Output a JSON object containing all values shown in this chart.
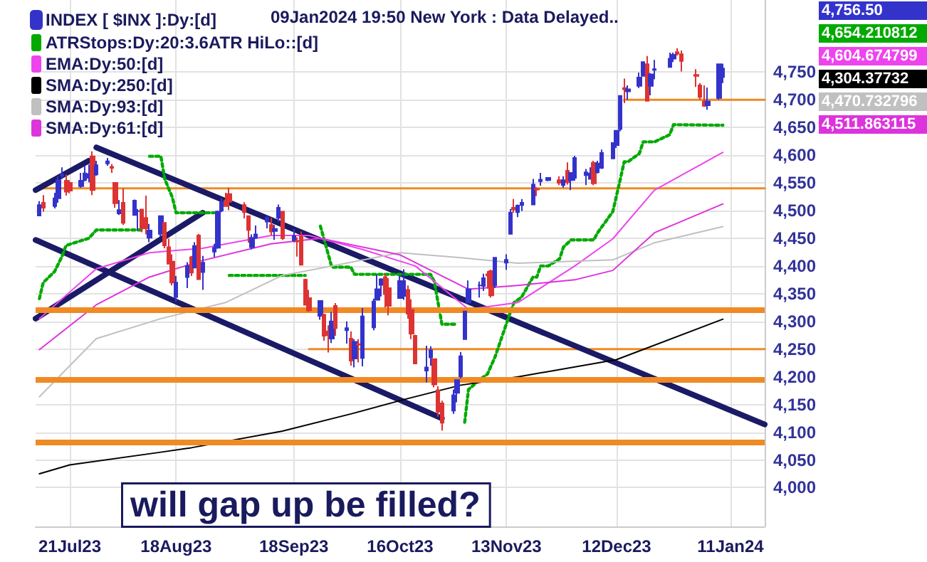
{
  "chart_data": {
    "type": "candlestick",
    "title": "09Jan2024 19:50 New York : Data Delayed..",
    "legend": "top left",
    "grid": true,
    "annotations": [
      "will gap up be filled?",
      "4,756.50",
      "4,654.210812",
      "4,604.674799",
      "4,304.37732",
      "4,470.732796",
      "4,511.863115"
    ],
    "xlim": [
      "2023-07-12",
      "2024-01-20"
    ],
    "xticks": [
      {
        "value": "2023-07-21",
        "label": "21Jul23"
      },
      {
        "value": "2023-08-18",
        "label": "18Aug23"
      },
      {
        "value": "2023-09-18",
        "label": "18Sep23"
      },
      {
        "value": "2023-10-16",
        "label": "16Oct23"
      },
      {
        "value": "2023-11-13",
        "label": "13Nov23"
      },
      {
        "value": "2023-12-12",
        "label": "12Dec23"
      },
      {
        "value": "2024-01-11",
        "label": "11Jan24"
      }
    ],
    "ylim": [
      3930,
      4880
    ],
    "yticks": [
      {
        "value": 4000,
        "label": "4,000"
      },
      {
        "value": 4050,
        "label": "4,050"
      },
      {
        "value": 4100,
        "label": "4,100"
      },
      {
        "value": 4150,
        "label": "4,150"
      },
      {
        "value": 4200,
        "label": "4,200"
      },
      {
        "value": 4250,
        "label": "4,250"
      },
      {
        "value": 4300,
        "label": "4,300"
      },
      {
        "value": 4350,
        "label": "4,350"
      },
      {
        "value": 4400,
        "label": "4,400"
      },
      {
        "value": 4450,
        "label": "4,450"
      },
      {
        "value": 4500,
        "label": "4,500"
      },
      {
        "value": 4550,
        "label": "4,550"
      },
      {
        "value": 4600,
        "label": "4,600"
      },
      {
        "value": 4650,
        "label": "4,650"
      },
      {
        "value": 4700,
        "label": "4,700"
      },
      {
        "value": 4750,
        "label": "4,750"
      }
    ],
    "ref_lines": [
      {
        "axis": "y",
        "value": 4320,
        "color": "#f08a24"
      },
      {
        "axis": "y",
        "value": 4195,
        "color": "#f08a24"
      },
      {
        "axis": "y",
        "value": 4082,
        "color": "#f08a24"
      }
    ],
    "series": [
      {
        "name": "INDEX [ $INX ]:Dy:[d]",
        "colors": [
          "#3333cc",
          "#dd3333",
          "#3333cc",
          "#3333cc",
          "#3333cc",
          "#dd3333",
          "#dd3333",
          "#3333cc",
          "#3333cc",
          "#3333cc",
          "#dd3333",
          "#3333cc",
          "#3333cc",
          "#dd3333",
          "#dd3333",
          "#3333cc",
          "#dd3333",
          "#3333cc",
          "#3333cc",
          "#dd3333",
          "#dd3333",
          "#3333cc",
          "#3333cc",
          "#dd3333",
          "#dd3333",
          "#dd3333",
          "#3333cc",
          "#3333cc",
          "#dd3333",
          "#3333cc",
          "#dd3333",
          "#3333cc",
          "#3333cc",
          "#3333cc",
          "#3333cc",
          "#dd3333",
          "#dd3333",
          "#dd3333",
          "#dd3333",
          "#3333cc",
          "#3333cc",
          "#3333cc",
          "#dd3333",
          "#3333cc",
          "#3333cc",
          "#dd3333",
          "#3333cc",
          "#dd3333",
          "#dd3333",
          "#dd3333",
          "#dd3333",
          "#3333cc",
          "#dd3333",
          "#dd3333",
          "#3333cc",
          "#dd3333",
          "#3333cc",
          "#dd3333",
          "#3333cc",
          "#dd3333",
          "#3333cc",
          "#3333cc",
          "#3333cc",
          "#3333cc",
          "#dd3333",
          "#dd3333",
          "#3333cc",
          "#3333cc",
          "#dd3333",
          "#dd3333",
          "#dd3333",
          "#3333cc",
          "#3333cc",
          "#dd3333",
          "#dd3333",
          "#dd3333",
          "#3333cc",
          "#3333cc",
          "#3333cc",
          "#3333cc",
          "#3333cc",
          "#3333cc",
          "#3333cc",
          "#dd3333",
          "#dd3333",
          "#3333cc",
          "#3333cc",
          "#3333cc",
          "#dd3333",
          "#3333cc",
          "#3333cc",
          "#3333cc",
          "#dd3333",
          "#3333cc",
          "#3333cc",
          "#dd3333",
          "#3333cc",
          "#dd3333",
          "#3333cc",
          "#3333cc",
          "#3333cc",
          "#3333cc",
          "#dd3333",
          "#3333cc",
          "#3333cc",
          "#3333cc",
          "#3333cc",
          "#3333cc",
          "#dd3333",
          "#3333cc",
          "#3333cc",
          "#3333cc",
          "#dd3333",
          "#3333cc",
          "#3333cc",
          "#3333cc",
          "#3333cc",
          "#dd3333",
          "#dd3333",
          "#dd3333",
          "#dd3333",
          "#dd3333",
          "#3333cc",
          "#3333cc",
          "#3333cc"
        ],
        "x": [
          "2023-07-13",
          "2023-07-14",
          "2023-07-17",
          "2023-07-18",
          "2023-07-19",
          "2023-07-20",
          "2023-07-21",
          "2023-07-24",
          "2023-07-25",
          "2023-07-26",
          "2023-07-27",
          "2023-07-28",
          "2023-07-31",
          "2023-08-01",
          "2023-08-02",
          "2023-08-03",
          "2023-08-04",
          "2023-08-07",
          "2023-08-08",
          "2023-08-09",
          "2023-08-10",
          "2023-08-11",
          "2023-08-14",
          "2023-08-15",
          "2023-08-16",
          "2023-08-17",
          "2023-08-18",
          "2023-08-21",
          "2023-08-22",
          "2023-08-23",
          "2023-08-24",
          "2023-08-25",
          "2023-08-28",
          "2023-08-29",
          "2023-08-30",
          "2023-08-31",
          "2023-09-01",
          "2023-09-05",
          "2023-09-06",
          "2023-09-07",
          "2023-09-08",
          "2023-09-11",
          "2023-09-12",
          "2023-09-13",
          "2023-09-14",
          "2023-09-15",
          "2023-09-18",
          "2023-09-19",
          "2023-09-20",
          "2023-09-21",
          "2023-09-22",
          "2023-09-25",
          "2023-09-26",
          "2023-09-27",
          "2023-09-28",
          "2023-09-29",
          "2023-10-02",
          "2023-10-03",
          "2023-10-04",
          "2023-10-05",
          "2023-10-06",
          "2023-10-09",
          "2023-10-10",
          "2023-10-11",
          "2023-10-12",
          "2023-10-13",
          "2023-10-16",
          "2023-10-17",
          "2023-10-18",
          "2023-10-19",
          "2023-10-20",
          "2023-10-23",
          "2023-10-24",
          "2023-10-25",
          "2023-10-26",
          "2023-10-27",
          "2023-10-30",
          "2023-10-31",
          "2023-11-01",
          "2023-11-02",
          "2023-11-03",
          "2023-11-06",
          "2023-11-07",
          "2023-11-08",
          "2023-11-09",
          "2023-11-10",
          "2023-11-13",
          "2023-11-14",
          "2023-11-15",
          "2023-11-16",
          "2023-11-17",
          "2023-11-20",
          "2023-11-21",
          "2023-11-22",
          "2023-11-24",
          "2023-11-27",
          "2023-11-28",
          "2023-11-29",
          "2023-11-30",
          "2023-12-01",
          "2023-12-04",
          "2023-12-05",
          "2023-12-06",
          "2023-12-07",
          "2023-12-08",
          "2023-12-11",
          "2023-12-12",
          "2023-12-13",
          "2023-12-14",
          "2023-12-15",
          "2023-12-18",
          "2023-12-19",
          "2023-12-20",
          "2023-12-21",
          "2023-12-22",
          "2023-12-26",
          "2023-12-27",
          "2023-12-28",
          "2023-12-29",
          "2024-01-02",
          "2024-01-03",
          "2024-01-04",
          "2024-01-05",
          "2024-01-08",
          "2024-01-09"
        ],
        "ohlc": [
          [
            4491,
            4517,
            4491,
            4510
          ],
          [
            4514,
            4528,
            4498,
            4505
          ],
          [
            4508,
            4532,
            4504,
            4522
          ],
          [
            4522,
            4562,
            4514,
            4555
          ],
          [
            4563,
            4578,
            4557,
            4565
          ],
          [
            4554,
            4565,
            4527,
            4534
          ],
          [
            4550,
            4555,
            4531,
            4536
          ],
          [
            4544,
            4568,
            4541,
            4554
          ],
          [
            4555,
            4580,
            4553,
            4567
          ],
          [
            4559,
            4583,
            4551,
            4566
          ],
          [
            4598,
            4607,
            4528,
            4537
          ],
          [
            4565,
            4590,
            4563,
            4582
          ],
          [
            4585,
            4595,
            4581,
            4589
          ],
          [
            4579,
            4584,
            4568,
            4577
          ],
          [
            4550,
            4551,
            4505,
            4513
          ],
          [
            4495,
            4519,
            4492,
            4501
          ],
          [
            4514,
            4540,
            4474,
            4478
          ],
          [
            4492,
            4520,
            4491,
            4518
          ],
          [
            4499,
            4503,
            4464,
            4499
          ],
          [
            4502,
            4503,
            4461,
            4468
          ],
          [
            4487,
            4527,
            4457,
            4468
          ],
          [
            4451,
            4476,
            4443,
            4464
          ],
          [
            4458,
            4490,
            4453,
            4490
          ],
          [
            4478,
            4478,
            4432,
            4437
          ],
          [
            4434,
            4449,
            4403,
            4404
          ],
          [
            4408,
            4421,
            4365,
            4370
          ],
          [
            4344,
            4382,
            4335,
            4370
          ],
          [
            4380,
            4407,
            4360,
            4400
          ],
          [
            4416,
            4418,
            4382,
            4388
          ],
          [
            4397,
            4443,
            4397,
            4436
          ],
          [
            4455,
            4458,
            4375,
            4376
          ],
          [
            4389,
            4418,
            4357,
            4406
          ],
          [
            4426,
            4440,
            4416,
            4433
          ],
          [
            4433,
            4500,
            4431,
            4498
          ],
          [
            4500,
            4522,
            4497,
            4515
          ],
          [
            4518,
            4532,
            4507,
            4508
          ],
          [
            4530,
            4541,
            4501,
            4516
          ],
          [
            4510,
            4515,
            4486,
            4497
          ],
          [
            4490,
            4491,
            4442,
            4465
          ],
          [
            4434,
            4457,
            4430,
            4451
          ],
          [
            4451,
            4473,
            4449,
            4457
          ],
          [
            4480,
            4490,
            4468,
            4487
          ],
          [
            4474,
            4487,
            4456,
            4462
          ],
          [
            4463,
            4474,
            4447,
            4467
          ],
          [
            4487,
            4511,
            4479,
            4505
          ],
          [
            4498,
            4498,
            4447,
            4450
          ],
          [
            4446,
            4467,
            4443,
            4454
          ],
          [
            4445,
            4452,
            4417,
            4444
          ],
          [
            4453,
            4462,
            4402,
            4402
          ],
          [
            4375,
            4377,
            4329,
            4330
          ],
          [
            4342,
            4357,
            4317,
            4320
          ],
          [
            4310,
            4338,
            4303,
            4337
          ],
          [
            4312,
            4314,
            4265,
            4274
          ],
          [
            4282,
            4293,
            4244,
            4275
          ],
          [
            4269,
            4317,
            4261,
            4300
          ],
          [
            4328,
            4333,
            4274,
            4288
          ],
          [
            4284,
            4300,
            4260,
            4288
          ],
          [
            4269,
            4282,
            4220,
            4229
          ],
          [
            4233,
            4268,
            4217,
            4263
          ],
          [
            4259,
            4268,
            4226,
            4258
          ],
          [
            4234,
            4324,
            4219,
            4309
          ],
          [
            4289,
            4341,
            4284,
            4336
          ],
          [
            4339,
            4385,
            4339,
            4358
          ],
          [
            4366,
            4378,
            4345,
            4376
          ],
          [
            4380,
            4386,
            4325,
            4349
          ],
          [
            4360,
            4378,
            4311,
            4328
          ],
          [
            4342,
            4383,
            4342,
            4373
          ],
          [
            4346,
            4394,
            4339,
            4373
          ],
          [
            4357,
            4365,
            4305,
            4314
          ],
          [
            4321,
            4340,
            4268,
            4278
          ],
          [
            4274,
            4276,
            4223,
            4224
          ],
          [
            4211,
            4256,
            4190,
            4217
          ],
          [
            4235,
            4255,
            4220,
            4248
          ],
          [
            4232,
            4232,
            4181,
            4186
          ],
          [
            4176,
            4183,
            4128,
            4137
          ],
          [
            4152,
            4157,
            4103,
            4117
          ],
          [
            4139,
            4177,
            4133,
            4167
          ],
          [
            4171,
            4195,
            4154,
            4194
          ],
          [
            4201,
            4245,
            4197,
            4237
          ],
          [
            4268,
            4319,
            4268,
            4318
          ],
          [
            4334,
            4374,
            4334,
            4358
          ],
          [
            4365,
            4372,
            4343,
            4365
          ],
          [
            4364,
            4386,
            4355,
            4378
          ],
          [
            4385,
            4391,
            4359,
            4383
          ],
          [
            4391,
            4393,
            4343,
            4347
          ],
          [
            4365,
            4415,
            4360,
            4415
          ],
          [
            4406,
            4421,
            4393,
            4411
          ],
          [
            4458,
            4503,
            4458,
            4496
          ],
          [
            4505,
            4521,
            4496,
            4502
          ],
          [
            4497,
            4511,
            4488,
            4509
          ],
          [
            4510,
            4521,
            4499,
            4514
          ],
          [
            4511,
            4557,
            4511,
            4547
          ],
          [
            4539,
            4542,
            4526,
            4538
          ],
          [
            4553,
            4568,
            4545,
            4556
          ],
          [
            4555,
            4560,
            4553,
            4559
          ],
          [
            4555,
            4562,
            4546,
            4550
          ],
          [
            4546,
            4562,
            4541,
            4555
          ],
          [
            4572,
            4587,
            4547,
            4551
          ],
          [
            4555,
            4569,
            4537,
            4568
          ],
          [
            4559,
            4599,
            4554,
            4595
          ],
          [
            4564,
            4575,
            4546,
            4569
          ],
          [
            4557,
            4578,
            4556,
            4567
          ],
          [
            4586,
            4590,
            4546,
            4549
          ],
          [
            4569,
            4590,
            4567,
            4585
          ],
          [
            4577,
            4610,
            4575,
            4604
          ],
          [
            4594,
            4623,
            4593,
            4622
          ],
          [
            4618,
            4644,
            4613,
            4644
          ],
          [
            4647,
            4707,
            4643,
            4707
          ],
          [
            4721,
            4738,
            4694,
            4719
          ],
          [
            4715,
            4726,
            4700,
            4719
          ],
          [
            4725,
            4749,
            4721,
            4740
          ],
          [
            4743,
            4768,
            4743,
            4768
          ],
          [
            4764,
            4779,
            4698,
            4698
          ],
          [
            4725,
            4748,
            4708,
            4746
          ],
          [
            4754,
            4772,
            4737,
            4755
          ],
          [
            4759,
            4785,
            4759,
            4774
          ],
          [
            4774,
            4785,
            4768,
            4781
          ],
          [
            4786,
            4793,
            4780,
            4783
          ],
          [
            4782,
            4789,
            4751,
            4770
          ],
          [
            4745,
            4755,
            4723,
            4743
          ],
          [
            4726,
            4730,
            4700,
            4705
          ],
          [
            4697,
            4726,
            4687,
            4689
          ],
          [
            4690,
            4722,
            4682,
            4697
          ],
          [
            4703,
            4764,
            4700,
            4764
          ],
          [
            4741,
            4765,
            4730,
            4756.5
          ]
        ]
      },
      {
        "type": "line",
        "name": "ATRStops:Dy:20:3.6ATR HiLo::[d]",
        "color": "#00aa00",
        "line_style": "dotted",
        "x": [
          "2023-07-13",
          "2023-07-14",
          "2023-07-17",
          "2023-07-19",
          "2023-07-20",
          "2023-07-26",
          "2023-07-28",
          "2023-08-09",
          "2023-08-10",
          "2023-08-11",
          "2023-08-14",
          "2023-08-15",
          "2023-08-17",
          "2023-08-18",
          "2023-08-28",
          "2023-08-30",
          "2023-09-01",
          "2023-09-21",
          "2023-09-22",
          "2023-09-25",
          "2023-09-28",
          "2023-10-03",
          "2023-10-04",
          "2023-10-24",
          "2023-10-25",
          "2023-10-27",
          "2023-10-31",
          "2023-11-01",
          "2023-11-02",
          "2023-11-03",
          "2023-11-06",
          "2023-11-08",
          "2023-11-10",
          "2023-11-14",
          "2023-11-15",
          "2023-11-17",
          "2023-11-20",
          "2023-11-21",
          "2023-11-22",
          "2023-11-24",
          "2023-11-27",
          "2023-11-28",
          "2023-11-30",
          "2023-12-06",
          "2023-12-07",
          "2023-12-11",
          "2023-12-13",
          "2023-12-14",
          "2023-12-15",
          "2023-12-18",
          "2023-12-19",
          "2023-12-22",
          "2023-12-26",
          "2023-12-27",
          "2024-01-09"
        ],
        "values": [
          4341,
          4370,
          4390,
          4418,
          4437,
          4450,
          4465,
          4465,
          null,
          4598,
          4598,
          4557,
          4524,
          4496,
          4496,
          null,
          4383,
          4383,
          null,
          4472,
          4398,
          4398,
          4385,
          4385,
          4372,
          4295,
          4295,
          null,
          4118,
          4177,
          4195,
          4205,
          4236,
          4316,
          4334,
          4344,
          4380,
          4380,
          4400,
          4400,
          4413,
          4434,
          4447,
          4447,
          4460,
          4498,
          4557,
          4588,
          4588,
          4603,
          4624,
          4624,
          4637,
          4655,
          4654
        ]
      },
      {
        "type": "line",
        "name": "EMA:Dy:50:[d]",
        "color": "#ee44ee",
        "x": [
          "2023-07-13",
          "2023-07-28",
          "2023-08-11",
          "2023-08-25",
          "2023-09-12",
          "2023-09-22",
          "2023-10-06",
          "2023-10-20",
          "2023-11-03",
          "2023-11-16",
          "2023-12-01",
          "2023-12-11",
          "2023-12-22",
          "2024-01-09"
        ],
        "values": [
          4305,
          4395,
          4424,
          4432,
          4455,
          4455,
          4430,
          4400,
          4322,
          4334,
          4400,
          4449,
          4537,
          4605
        ]
      },
      {
        "type": "line",
        "name": "SMA:Dy:250:[d]",
        "color": "#000000",
        "x": [
          "2023-07-13",
          "2023-07-21",
          "2023-08-14",
          "2023-08-22",
          "2023-09-15",
          "2023-10-03",
          "2023-10-17",
          "2023-11-01",
          "2023-11-16",
          "2023-12-12",
          "2024-01-09"
        ],
        "values": [
          4025,
          4041,
          4064,
          4072,
          4102,
          4133,
          4159,
          4185,
          4200,
          4231,
          4304
        ]
      },
      {
        "type": "line",
        "name": "SMA:Dy:93:[d]",
        "color": "#c0c0c0",
        "x": [
          "2023-07-13",
          "2023-07-28",
          "2023-08-14",
          "2023-08-31",
          "2023-09-15",
          "2023-09-28",
          "2023-10-16",
          "2023-11-01",
          "2023-11-16",
          "2023-12-11",
          "2023-12-22",
          "2024-01-09"
        ],
        "values": [
          4164,
          4269,
          4305,
          4334,
          4383,
          4400,
          4424,
          4415,
          4405,
          4411,
          4442,
          4471
        ]
      },
      {
        "type": "line",
        "name": "SMA:Dy:61:[d]",
        "color": "#dd33dd",
        "x": [
          "2023-07-13",
          "2023-07-28",
          "2023-08-11",
          "2023-08-25",
          "2023-09-12",
          "2023-09-25",
          "2023-10-16",
          "2023-11-03",
          "2023-11-16",
          "2023-12-01",
          "2023-12-11",
          "2023-12-22",
          "2024-01-09"
        ],
        "values": [
          4249,
          4330,
          4380,
          4410,
          4440,
          4450,
          4420,
          4358,
          4365,
          4375,
          4392,
          4460,
          4512
        ]
      },
      {
        "type": "line",
        "color": "#f08a24",
        "x": [
          "2023-07-12",
          "2024-01-20"
        ],
        "values": [
          4540,
          4540
        ]
      },
      {
        "type": "line",
        "color": "#f08a24",
        "x": [
          "2023-09-22",
          "2024-01-20"
        ],
        "values": [
          4250,
          4250
        ]
      },
      {
        "type": "line",
        "color": "#f08a24",
        "x": [
          "2023-12-14",
          "2024-01-20"
        ],
        "values": [
          4700,
          4700
        ]
      },
      {
        "type": "line",
        "color": "#1a1a66",
        "x": [
          "2023-07-28",
          "2024-01-20"
        ],
        "values": [
          4614,
          4114
        ]
      },
      {
        "type": "line",
        "color": "#1a1a66",
        "x": [
          "2023-07-12",
          "2023-10-27"
        ],
        "values": [
          4447,
          4125
        ]
      },
      {
        "type": "line",
        "color": "#1a1a66",
        "x": [
          "2023-07-12",
          "2023-08-25"
        ],
        "values": [
          4305,
          4496
        ]
      },
      {
        "type": "line",
        "color": "#1a1a66",
        "x": [
          "2023-07-12",
          "2023-07-26"
        ],
        "values": [
          4537,
          4590
        ]
      }
    ]
  }
}
